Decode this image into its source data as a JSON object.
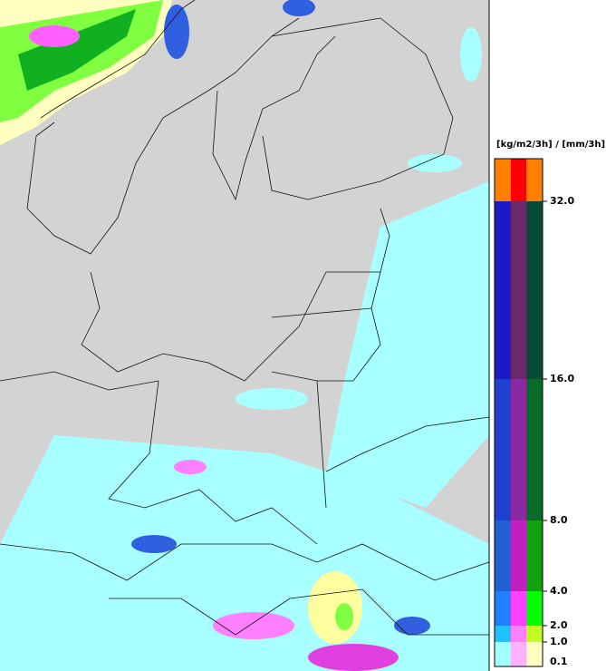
{
  "legend": {
    "title": "[kg/m2/3h] / [mm/3h]",
    "ticks": [
      "32.0",
      "16.0",
      "8.0",
      "4.0",
      "2.0",
      "1.0",
      "0.1"
    ]
  }
}
